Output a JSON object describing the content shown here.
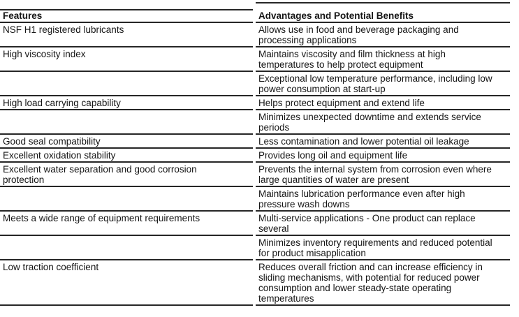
{
  "table": {
    "columns": [
      "Features",
      "Advantages and Potential Benefits"
    ],
    "rows": [
      {
        "feature": "NSF H1 registered lubricants",
        "benefit": "Allows use in food and beverage packaging and\nprocessing applications"
      },
      {
        "feature": "High viscosity index",
        "benefit": "Maintains viscosity and film thickness at high\ntemperatures to help protect equipment"
      },
      {
        "feature": "",
        "benefit": "Exceptional low temperature performance, including low\npower consumption at start-up"
      },
      {
        "feature": "High load carrying capability",
        "benefit": "Helps protect equipment and extend life"
      },
      {
        "feature": "",
        "benefit": "Minimizes unexpected downtime and extends service\nperiods"
      },
      {
        "feature": "Good seal compatibility",
        "benefit": "Less contamination and lower potential oil leakage"
      },
      {
        "feature": "Excellent oxidation stability",
        "benefit": "Provides long oil and equipment life"
      },
      {
        "feature": "Excellent water separation and good corrosion\nprotection",
        "benefit": "Prevents the internal system from corrosion even where\nlarge quantities of water are present"
      },
      {
        "feature": "",
        "benefit": "Maintains lubrication performance even after high\npressure wash downs"
      },
      {
        "feature": "Meets a wide range of equipment requirements",
        "benefit": "Multi-service applications - One product can replace\nseveral"
      },
      {
        "feature": "",
        "benefit": "Minimizes inventory requirements and reduced potential\nfor product misapplication"
      },
      {
        "feature": "Low traction coefficient",
        "benefit": "Reduces overall friction and can increase efficiency in\nsliding mechanisms, with potential for reduced power\nconsumption and lower steady-state operating\ntemperatures"
      }
    ],
    "line_color": "#262626"
  }
}
